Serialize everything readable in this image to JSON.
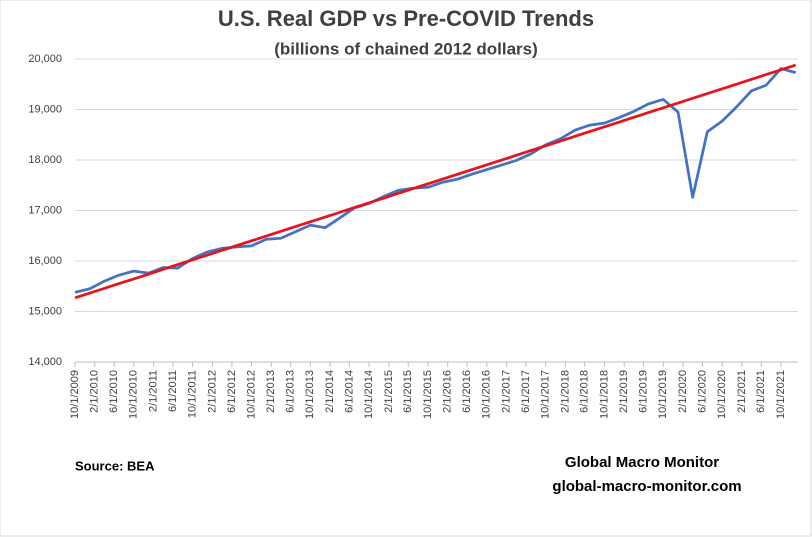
{
  "chart_data": {
    "type": "line",
    "title": "U.S. Real GDP vs Pre-COVID Trends",
    "subtitle": "(billions of chained 2012 dollars)",
    "source": "Source:  BEA",
    "watermark": [
      "Global Macro Monitor",
      "global-macro-monitor.com"
    ],
    "x": [
      "10/1/2009",
      "1/1/2010",
      "4/1/2010",
      "7/1/2010",
      "10/1/2010",
      "1/1/2011",
      "4/1/2011",
      "7/1/2011",
      "10/1/2011",
      "1/1/2012",
      "4/1/2012",
      "7/1/2012",
      "10/1/2012",
      "1/1/2013",
      "4/1/2013",
      "7/1/2013",
      "10/1/2013",
      "1/1/2014",
      "4/1/2014",
      "7/1/2014",
      "10/1/2014",
      "1/1/2015",
      "4/1/2015",
      "7/1/2015",
      "10/1/2015",
      "1/1/2016",
      "4/1/2016",
      "7/1/2016",
      "10/1/2016",
      "1/1/2017",
      "4/1/2017",
      "7/1/2017",
      "10/1/2017",
      "1/1/2018",
      "4/1/2018",
      "7/1/2018",
      "10/1/2018",
      "1/1/2019",
      "4/1/2019",
      "7/1/2019",
      "10/1/2019",
      "1/1/2020",
      "4/1/2020",
      "7/1/2020",
      "10/1/2020",
      "1/1/2021",
      "4/1/2021",
      "7/1/2021",
      "10/1/2021",
      "1/1/2022"
    ],
    "series": [
      {
        "color": "#4472c4",
        "values": [
          15380,
          15450,
          15600,
          15720,
          15800,
          15760,
          15870,
          15860,
          16050,
          16180,
          16250,
          16280,
          16300,
          16430,
          16450,
          16580,
          16710,
          16660,
          16850,
          17050,
          17140,
          17280,
          17400,
          17440,
          17460,
          17560,
          17620,
          17720,
          17810,
          17900,
          17990,
          18120,
          18300,
          18420,
          18590,
          18690,
          18730,
          18840,
          18960,
          19110,
          19200,
          18950,
          17260,
          18560,
          18770,
          19060,
          19370,
          19480,
          19810,
          19730
        ]
      },
      {
        "color": "#e8141c",
        "values": [
          15270,
          15364,
          15458,
          15552,
          15646,
          15740,
          15834,
          15929,
          16023,
          16117,
          16211,
          16305,
          16399,
          16493,
          16587,
          16681,
          16775,
          16869,
          16963,
          17058,
          17152,
          17246,
          17340,
          17434,
          17528,
          17622,
          17716,
          17810,
          17904,
          17998,
          18092,
          18186,
          18281,
          18375,
          18469,
          18563,
          18657,
          18751,
          18845,
          18939,
          19033,
          19127,
          19221,
          19315,
          19410,
          19504,
          19598,
          19692,
          19786,
          19880
        ]
      }
    ],
    "xlim": [
      "10/1/2009",
      "1/15/2022"
    ],
    "xticks": [
      "10/1/2009",
      "2/1/2010",
      "6/1/2010",
      "10/1/2010",
      "2/1/2011",
      "6/1/2011",
      "10/1/2011",
      "2/1/2012",
      "6/1/2012",
      "10/1/2012",
      "2/1/2013",
      "6/1/2013",
      "10/1/2013",
      "2/1/2014",
      "6/1/2014",
      "10/1/2014",
      "2/1/2015",
      "6/1/2015",
      "10/1/2015",
      "2/1/2016",
      "6/1/2016",
      "10/1/2016",
      "2/1/2017",
      "6/1/2017",
      "10/1/2017",
      "2/1/2018",
      "6/1/2018",
      "10/1/2018",
      "2/1/2019",
      "6/1/2019",
      "10/1/2019",
      "2/1/2020",
      "6/1/2020",
      "10/1/2020",
      "2/1/2021",
      "6/1/2021",
      "10/1/2021"
    ],
    "ylim": [
      14000,
      20000
    ],
    "yticks": [
      {
        "value": 14000,
        "label": "14,000"
      },
      {
        "value": 15000,
        "label": "15,000"
      },
      {
        "value": 16000,
        "label": "16,000"
      },
      {
        "value": 17000,
        "label": "17,000"
      },
      {
        "value": 18000,
        "label": "18,000"
      },
      {
        "value": 19000,
        "label": "19,000"
      },
      {
        "value": 20000,
        "label": "20,000"
      }
    ],
    "grid": true
  }
}
